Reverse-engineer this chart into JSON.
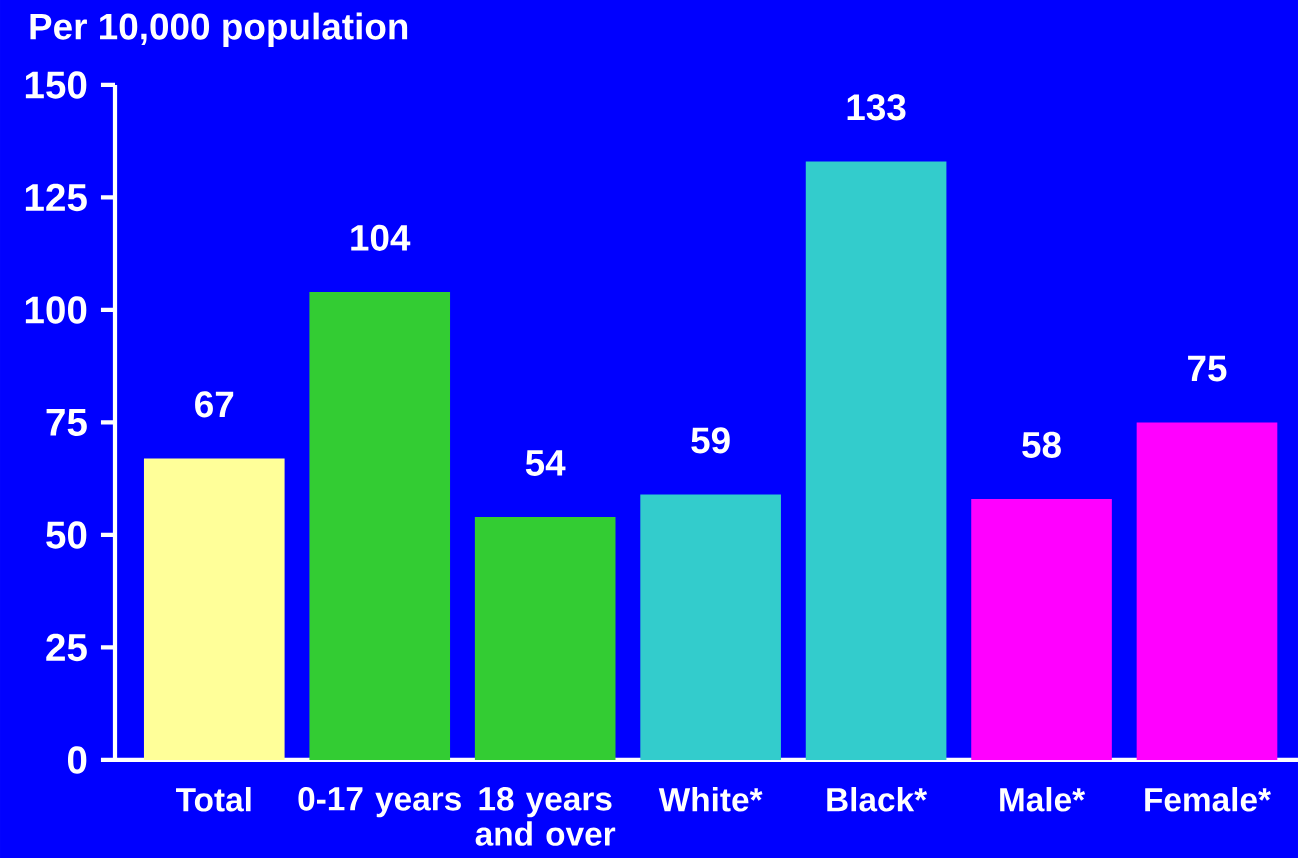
{
  "chart_data": {
    "type": "bar",
    "ylabel": "Per 10,000 population",
    "categories": [
      "Total",
      "0-17 years",
      "18 years and over",
      "White*",
      "Black*",
      "Male*",
      "Female*"
    ],
    "values": [
      67,
      104,
      54,
      59,
      133,
      58,
      75
    ],
    "colors": [
      "#ffff99",
      "#33cc33",
      "#33cc33",
      "#33cccc",
      "#33cccc",
      "#ff00ff",
      "#ff00ff"
    ],
    "ylim": [
      0,
      150
    ],
    "yticks": [
      0,
      25,
      50,
      75,
      100,
      125,
      150
    ],
    "data_labels": true,
    "grid": false
  }
}
